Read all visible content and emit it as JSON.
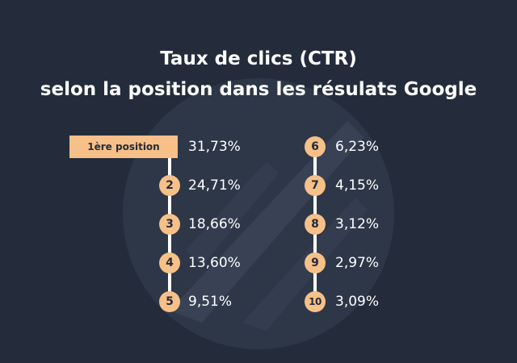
{
  "title": {
    "line1": "Taux de clics (CTR)",
    "line2": "selon la position dans les résulats Google"
  },
  "colors": {
    "background": "#242c3b",
    "accent": "#f6c088",
    "text": "#ffffff",
    "watermark": "#384254"
  },
  "chart_data": {
    "type": "table",
    "title": "Taux de clics (CTR) selon la position dans les résulats Google",
    "columns": [
      {
        "rows": [
          {
            "position": "1ère position",
            "value": "31,73%"
          },
          {
            "position": "2",
            "value": "24,71%"
          },
          {
            "position": "3",
            "value": "18,66%"
          },
          {
            "position": "4",
            "value": "13,60%"
          },
          {
            "position": "5",
            "value": "9,51%"
          }
        ]
      },
      {
        "rows": [
          {
            "position": "6",
            "value": "6,23%"
          },
          {
            "position": "7",
            "value": "4,15%"
          },
          {
            "position": "8",
            "value": "3,12%"
          },
          {
            "position": "9",
            "value": "2,97%"
          },
          {
            "position": "10",
            "value": "3,09%"
          }
        ]
      }
    ]
  }
}
